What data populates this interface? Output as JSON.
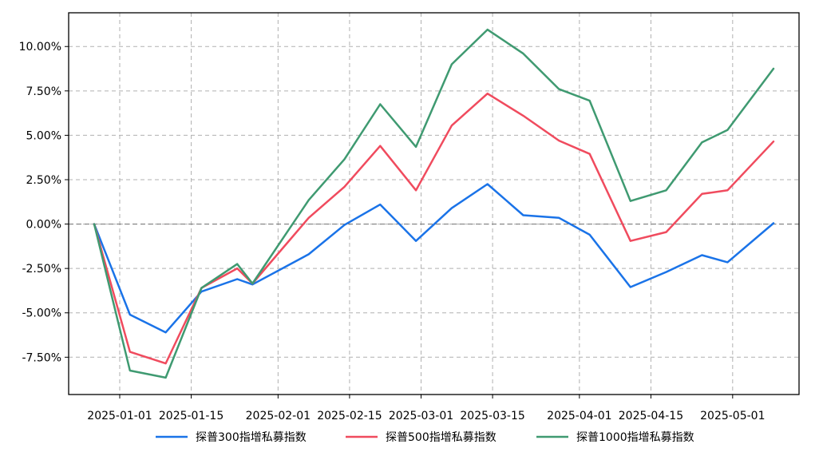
{
  "chart_data": {
    "type": "line",
    "title": "",
    "xlabel": "",
    "ylabel": "",
    "x": [
      "2024-12-27",
      "2025-01-03",
      "2025-01-10",
      "2025-01-17",
      "2025-01-24",
      "2025-01-27",
      "2025-02-07",
      "2025-02-14",
      "2025-02-21",
      "2025-02-28",
      "2025-03-07",
      "2025-03-14",
      "2025-03-21",
      "2025-03-28",
      "2025-04-03",
      "2025-04-11",
      "2025-04-18",
      "2025-04-25",
      "2025-04-30",
      "2025-05-09"
    ],
    "series": [
      {
        "name": "探普300指增私募指数",
        "color": "#1a73e8",
        "values": [
          0.0,
          -5.1,
          -6.1,
          -3.8,
          -3.1,
          -3.4,
          -1.7,
          -0.05,
          1.1,
          -0.95,
          0.9,
          2.25,
          0.5,
          0.35,
          -0.6,
          -3.55,
          -2.7,
          -1.75,
          -2.15,
          0.05
        ]
      },
      {
        "name": "探普500指增私募指数",
        "color": "#f04b5e",
        "values": [
          0.0,
          -7.2,
          -7.85,
          -3.6,
          -2.5,
          -3.35,
          0.35,
          2.1,
          4.4,
          1.9,
          5.55,
          7.35,
          6.1,
          4.7,
          3.95,
          -0.95,
          -0.45,
          1.7,
          1.9,
          4.65
        ]
      },
      {
        "name": "探普1000指增私募指数",
        "color": "#3f9a71",
        "values": [
          0.0,
          -8.25,
          -8.65,
          -3.6,
          -2.25,
          -3.35,
          1.35,
          3.65,
          6.75,
          4.35,
          9.0,
          10.95,
          9.6,
          7.6,
          6.95,
          1.3,
          1.9,
          4.6,
          5.3,
          8.75
        ]
      }
    ],
    "xticks": [
      {
        "date": "2025-01-01",
        "label": "2025-01-01"
      },
      {
        "date": "2025-01-15",
        "label": "2025-01-15"
      },
      {
        "date": "2025-02-01",
        "label": "2025-02-01"
      },
      {
        "date": "2025-02-15",
        "label": "2025-02-15"
      },
      {
        "date": "2025-03-01",
        "label": "2025-03-01"
      },
      {
        "date": "2025-03-15",
        "label": "2025-03-15"
      },
      {
        "date": "2025-04-01",
        "label": "2025-04-01"
      },
      {
        "date": "2025-04-15",
        "label": "2025-04-15"
      },
      {
        "date": "2025-05-01",
        "label": "2025-05-01"
      }
    ],
    "xlim": [
      "2024-12-22",
      "2025-05-14"
    ],
    "ylim": [
      -9.6,
      11.9
    ],
    "yticks": [
      {
        "value": -7.5,
        "label": "-7.50%"
      },
      {
        "value": -5.0,
        "label": "-5.00%"
      },
      {
        "value": -2.5,
        "label": "-2.50%"
      },
      {
        "value": 0.0,
        "label": "0.00%"
      },
      {
        "value": 2.5,
        "label": "2.50%"
      },
      {
        "value": 5.0,
        "label": "5.00%"
      },
      {
        "value": 7.5,
        "label": "7.50%"
      },
      {
        "value": 10.0,
        "label": "10.00%"
      }
    ],
    "grid": true,
    "zero_line": true,
    "legend_position": "bottom-center"
  }
}
